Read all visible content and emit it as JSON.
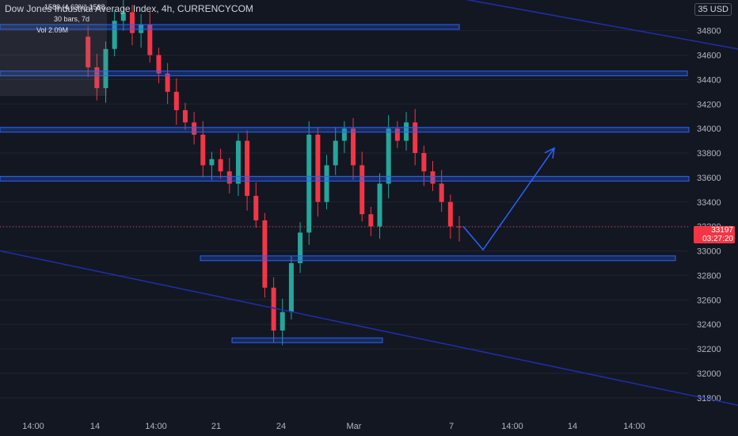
{
  "header": {
    "title": "Dow Jones Industrial Average Index, 4h, CURRENCYCOM",
    "currency": "USD",
    "currency_prefix": "35"
  },
  "measure": {
    "line1": "1588 (4.63%) 1588",
    "line2": "30 bars, 7d",
    "line3": "Vol 2.09M"
  },
  "price_tag": {
    "price": "33197",
    "countdown": "03:27:20"
  },
  "colors": {
    "background": "#131722",
    "up": "#26a69a",
    "down": "#f23645",
    "level": "#2962ff",
    "trend": "#1e2fa8",
    "projection": "#2962ff",
    "grid": "#1f2433"
  },
  "chart_data": {
    "type": "candlestick",
    "symbol": "Dow Jones Industrial Average Index",
    "interval": "4h",
    "ylim": [
      31650,
      35050
    ],
    "y_ticks": [
      31800,
      32000,
      32200,
      32400,
      32600,
      32800,
      33000,
      33200,
      33400,
      33600,
      33800,
      34000,
      34200,
      34400,
      34600,
      34800
    ],
    "x_ticks": [
      "14:00",
      "14",
      "14:00",
      "21",
      "24",
      "Mar",
      "7",
      "14:00",
      "14",
      "14:00"
    ],
    "close_series": [
      34750,
      34500,
      34330,
      34650,
      34880,
      34950,
      34780,
      34850,
      34600,
      34450,
      34300,
      34150,
      34050,
      33950,
      33700,
      33750,
      33650,
      33550,
      33900,
      33450,
      33250,
      32700,
      32350,
      32500,
      32900,
      33150,
      33950,
      33400,
      33700,
      33900,
      34000,
      33700,
      33300,
      33200,
      33550,
      34000,
      33900,
      34050,
      33800,
      33650,
      33550,
      33400,
      33200,
      33197
    ],
    "horizontal_levels": [
      34830,
      34450,
      33990,
      33590,
      32940,
      32270
    ],
    "trend_lines": [
      {
        "from": [
          0,
          33000
        ],
        "to": [
          932,
          31740
        ]
      },
      {
        "from": [
          575,
          35070
        ],
        "to": [
          932,
          34650
        ]
      }
    ],
    "projection_path": [
      33200,
      33010,
      33840
    ]
  }
}
